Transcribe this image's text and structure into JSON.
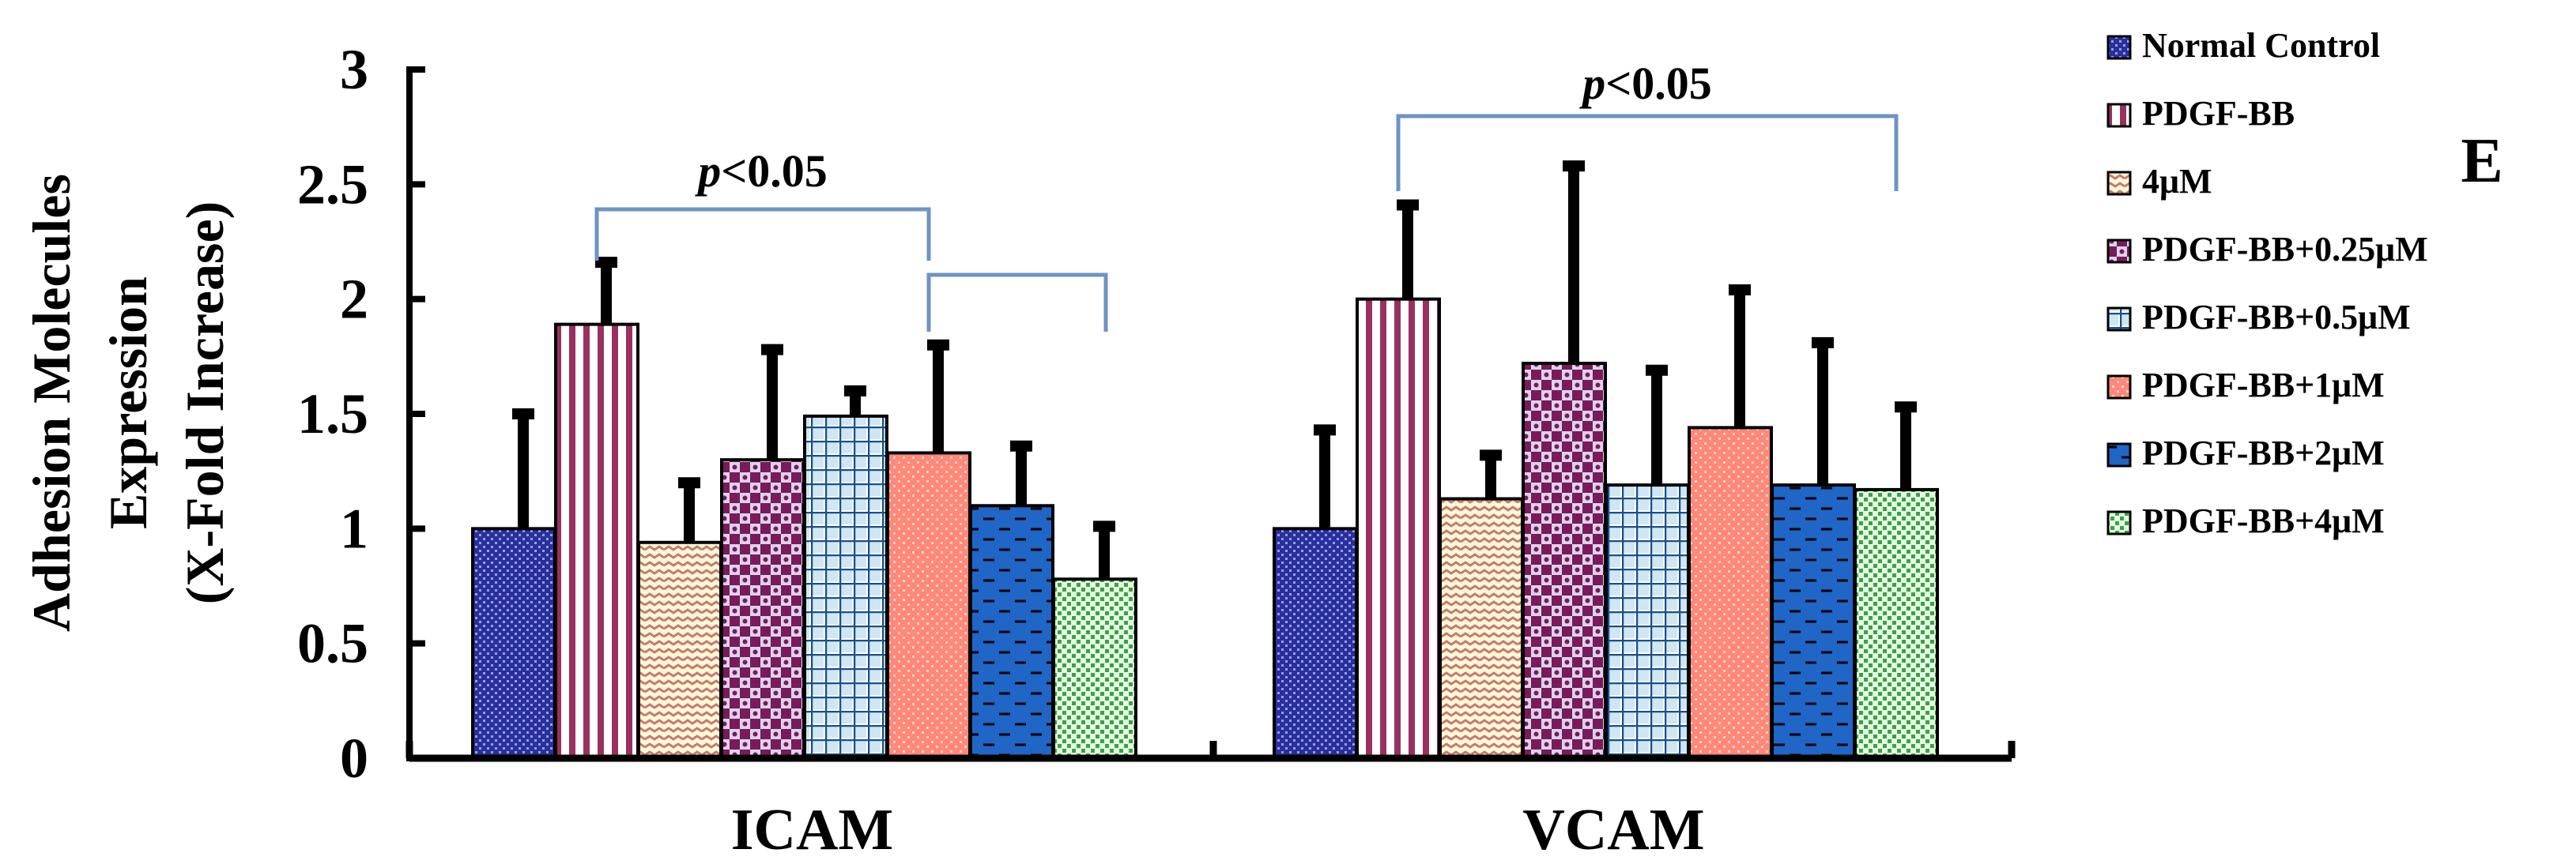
{
  "chart_data": {
    "type": "bar",
    "ylabel": [
      "Adhesion Molecules",
      "Expression",
      "(X-Fold Increase)"
    ],
    "xlabel": "",
    "ylim": [
      0,
      3
    ],
    "yticks": [
      "0",
      "0.5",
      "1",
      "1.5",
      "2",
      "2.5",
      "3"
    ],
    "categories": [
      "ICAM",
      "VCAM"
    ],
    "series": [
      {
        "name": "Normal Control",
        "values": [
          1.0,
          1.0
        ],
        "errors": [
          0.5,
          0.43
        ]
      },
      {
        "name": "PDGF-BB",
        "values": [
          1.89,
          2.0
        ],
        "errors": [
          0.27,
          0.41
        ]
      },
      {
        "name": "4μM",
        "values": [
          0.94,
          1.13
        ],
        "errors": [
          0.26,
          0.19
        ]
      },
      {
        "name": "PDGF-BB+0.25μM",
        "values": [
          1.3,
          1.72
        ],
        "errors": [
          0.48,
          0.86
        ]
      },
      {
        "name": "PDGF-BB+0.5μM",
        "values": [
          1.49,
          1.19
        ],
        "errors": [
          0.11,
          0.5
        ]
      },
      {
        "name": "PDGF-BB+1μM",
        "values": [
          1.33,
          1.44
        ],
        "errors": [
          0.47,
          0.6
        ]
      },
      {
        "name": "PDGF-BB+2μM",
        "values": [
          1.1,
          1.19
        ],
        "errors": [
          0.26,
          0.62
        ]
      },
      {
        "name": "PDGF-BB+4μM",
        "values": [
          0.78,
          1.17
        ],
        "errors": [
          0.23,
          0.36
        ]
      }
    ],
    "colors": [
      "#2b2f9a",
      "#9a3060",
      "#f7efb4",
      "#7a1a5a",
      "#cfe7f2",
      "#ff8878",
      "#1f66c6",
      "#c8efb8"
    ],
    "annotations": [
      {
        "text_italic": "p",
        "text": "<0.05",
        "category": "ICAM",
        "from_series": 1,
        "to_series": 5
      },
      {
        "text_italic": "",
        "text": "",
        "category": "ICAM",
        "from_series": 5,
        "to_series": 7
      },
      {
        "text_italic": "p",
        "text": "<0.05",
        "category": "VCAM",
        "from_series": 1,
        "to_series": 7
      }
    ],
    "panel_label": "E"
  }
}
